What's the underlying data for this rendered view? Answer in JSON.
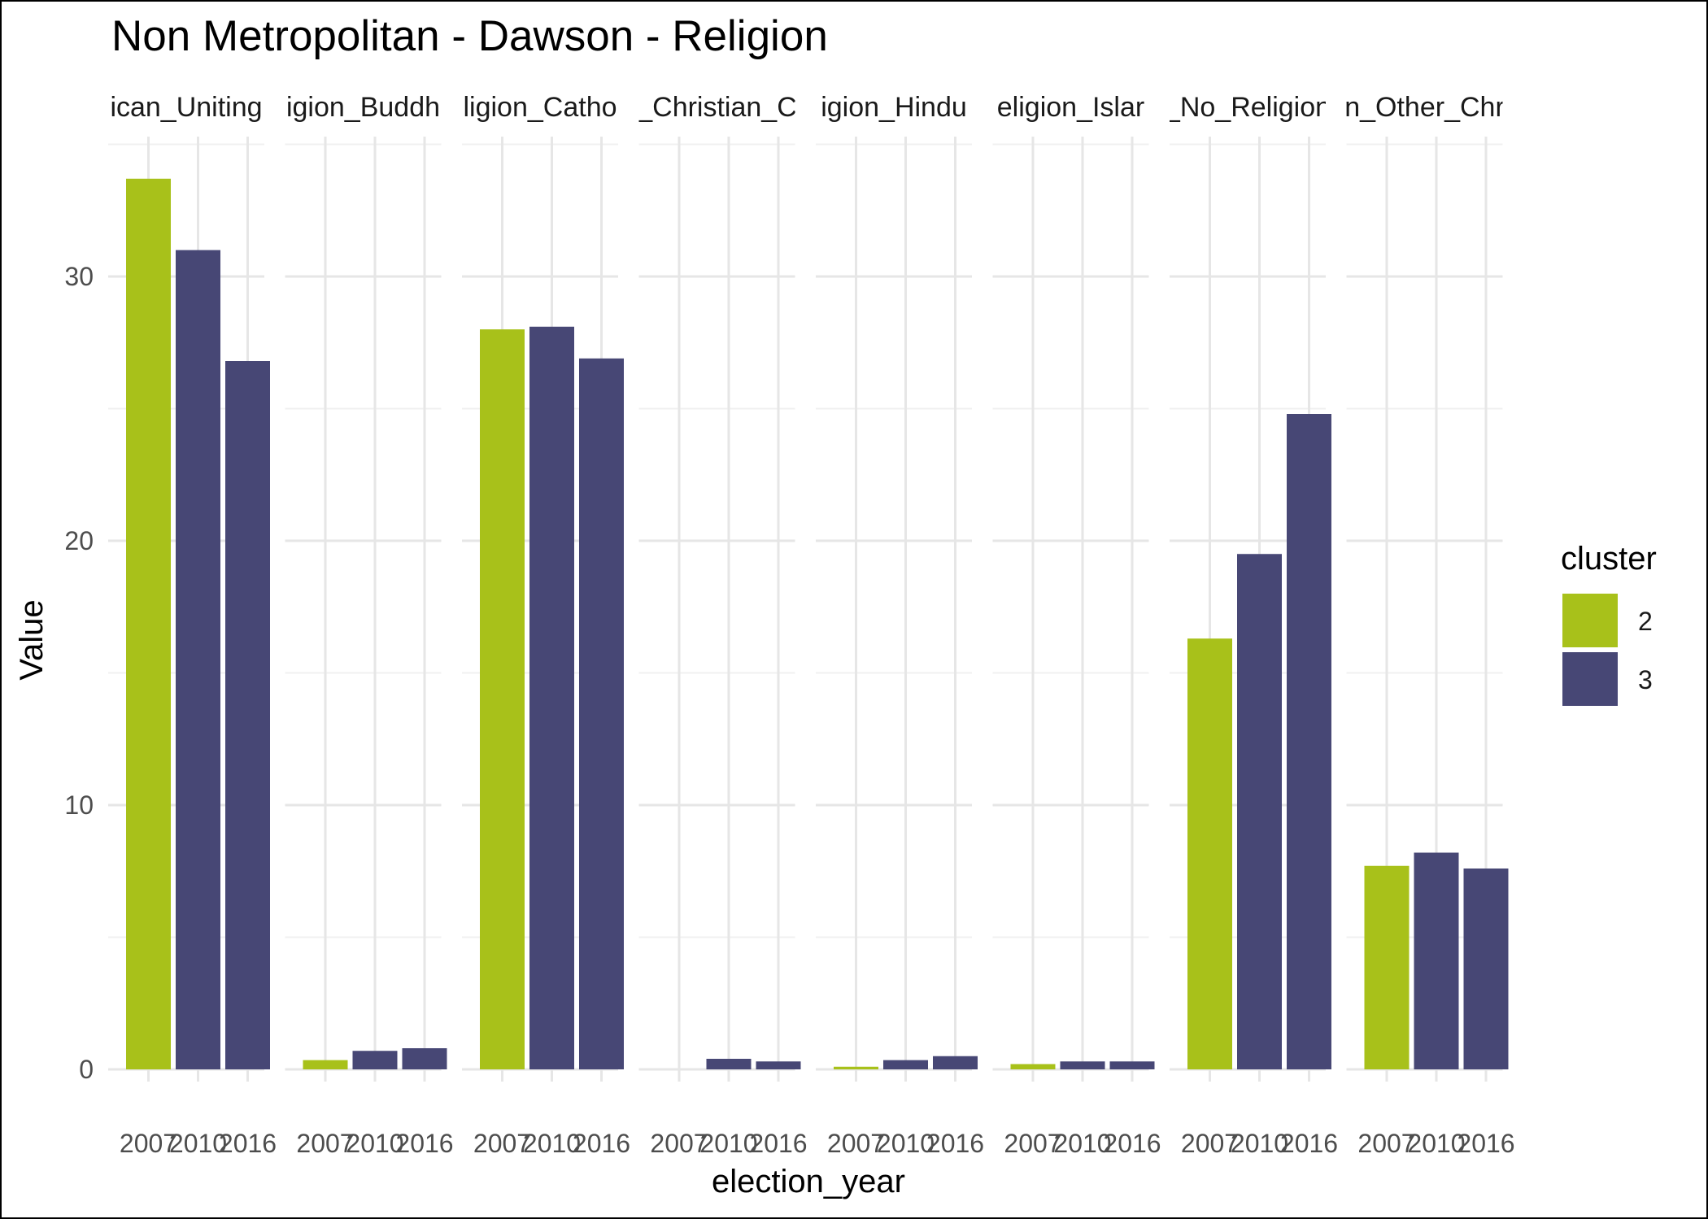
{
  "chart_data": {
    "type": "bar",
    "title": "Non Metropolitan - Dawson - Religion",
    "xlabel": "election_year",
    "ylabel": "Value",
    "ylim": [
      0,
      35.5
    ],
    "y_ticks": [
      0,
      10,
      20,
      30
    ],
    "grid": true,
    "legend_position": "right",
    "legend": {
      "title": "cluster",
      "items": [
        {
          "label": "2",
          "color": "#a8c11a"
        },
        {
          "label": "3",
          "color": "#474775"
        }
      ]
    },
    "categories": [
      "2007",
      "2010",
      "2016"
    ],
    "facets": [
      {
        "label": "ican_Uniting",
        "values": [
          33.7,
          31.0,
          26.8
        ],
        "clusters": [
          "2",
          "3",
          "3"
        ]
      },
      {
        "label": "igion_Buddh",
        "values": [
          0.35,
          0.7,
          0.8
        ],
        "clusters": [
          "2",
          "3",
          "3"
        ]
      },
      {
        "label": "ligion_Catho",
        "values": [
          28.0,
          28.1,
          26.9
        ],
        "clusters": [
          "2",
          "3",
          "3"
        ]
      },
      {
        "label": "_Christian_C",
        "values": [
          0.0,
          0.4,
          0.3
        ],
        "clusters": [
          "2",
          "3",
          "3"
        ]
      },
      {
        "label": "igion_Hindu",
        "values": [
          0.1,
          0.35,
          0.5
        ],
        "clusters": [
          "2",
          "3",
          "3"
        ]
      },
      {
        "label": "eligion_Islar",
        "values": [
          0.2,
          0.3,
          0.3
        ],
        "clusters": [
          "2",
          "3",
          "3"
        ]
      },
      {
        "label": "_No_Religion",
        "values": [
          16.3,
          19.5,
          24.8
        ],
        "clusters": [
          "2",
          "3",
          "3"
        ]
      },
      {
        "label": "n_Other_Chr",
        "values": [
          7.7,
          8.2,
          7.6
        ],
        "clusters": [
          "2",
          "3",
          "3"
        ]
      }
    ]
  }
}
